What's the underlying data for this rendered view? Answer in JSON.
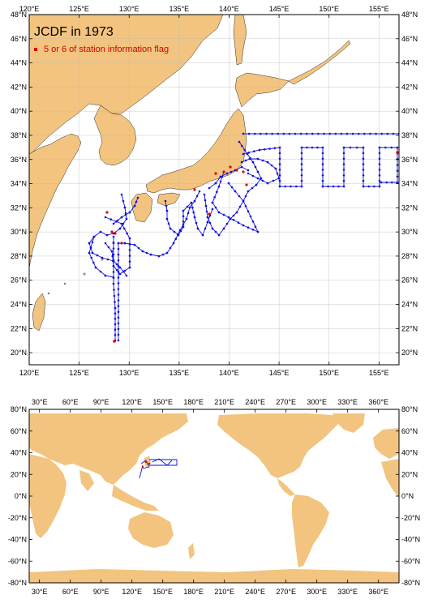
{
  "map_top": {
    "title": "JCDF in 1973",
    "legend_label": "5 or 6 of station information flag",
    "lon_ticks": [
      "120°E",
      "125°E",
      "130°E",
      "135°E",
      "140°E",
      "145°E",
      "150°E",
      "155°E"
    ],
    "lat_ticks": [
      "20°N",
      "22°N",
      "24°N",
      "26°N",
      "28°N",
      "30°N",
      "32°N",
      "34°N",
      "36°N",
      "38°N",
      "40°N",
      "42°N",
      "44°N",
      "46°N",
      "48°N"
    ],
    "lon_range": [
      120,
      157
    ],
    "lat_range": [
      19,
      48
    ]
  },
  "map_bottom": {
    "lon_ticks": [
      "30°E",
      "60°E",
      "90°E",
      "120°E",
      "150°E",
      "180°E",
      "210°E",
      "240°E",
      "270°E",
      "300°E",
      "330°E",
      "360°E"
    ],
    "lat_ticks": [
      "80°N",
      "60°N",
      "40°N",
      "20°N",
      "0°N",
      "-20°N",
      "-40°N",
      "-60°N",
      "-80°N"
    ],
    "lon_range": [
      20,
      380
    ],
    "lat_range": [
      -80,
      80
    ]
  },
  "colors": {
    "land": "#f2c47f",
    "track": "#1010dd",
    "flag": "#e00000",
    "frame": "#000000"
  }
}
